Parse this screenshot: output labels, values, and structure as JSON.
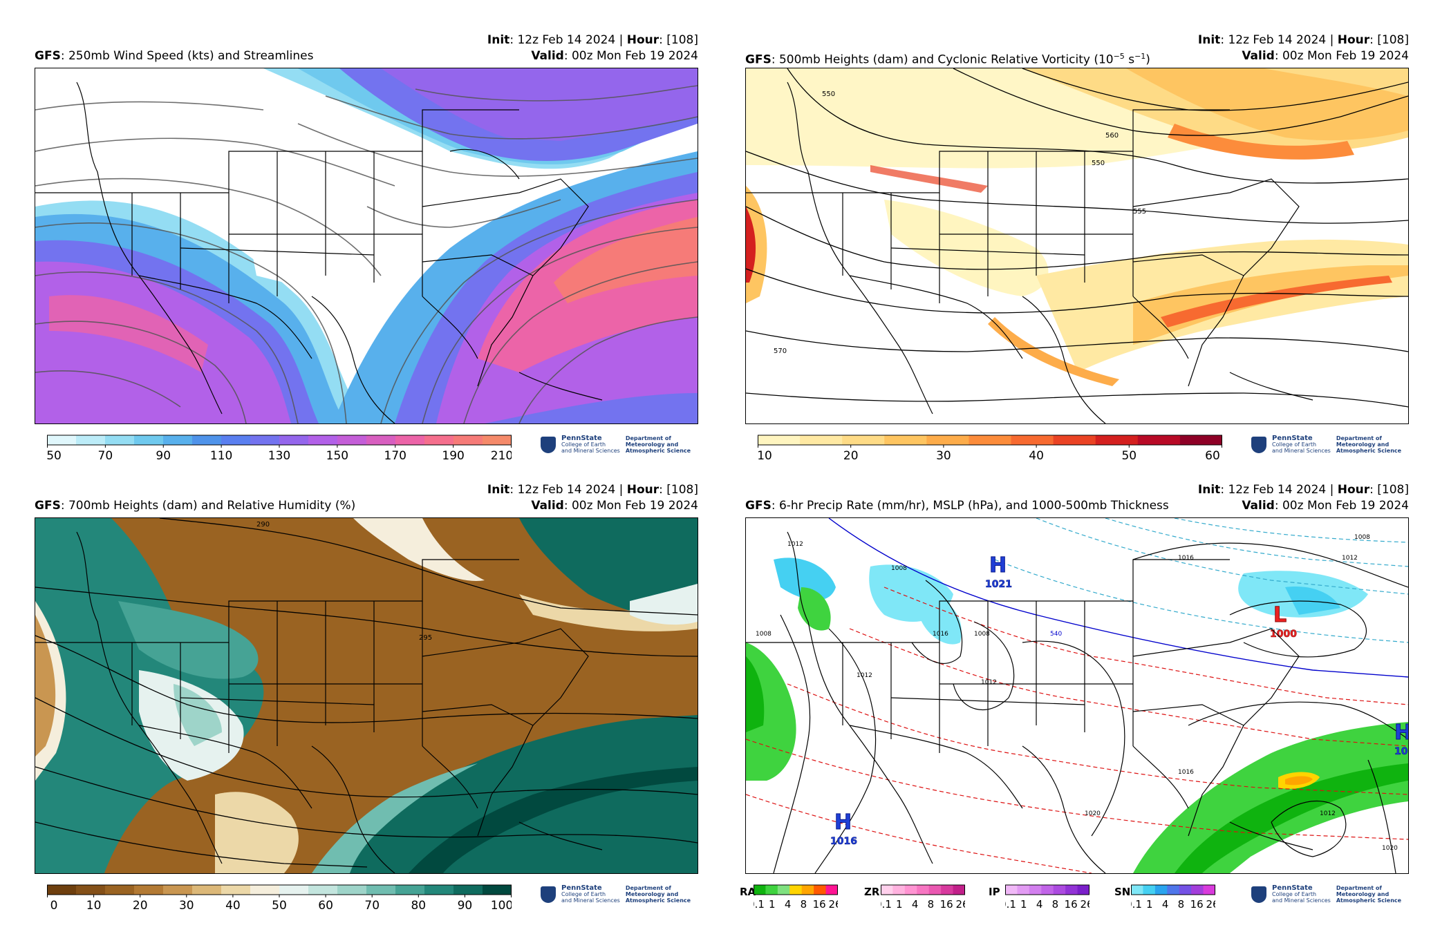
{
  "common": {
    "init_label": "Init",
    "init_value": ": 12z Feb 14 2024 | ",
    "hour_label": "Hour",
    "hour_value": ": [108]",
    "valid_label": "Valid",
    "valid_value": ": 00z Mon Feb 19 2024",
    "model": "GFS",
    "logo_name": "PennState",
    "logo_sub1": "College of Earth",
    "logo_sub2": "and Mineral Sciences",
    "dept1": "Department of",
    "dept2": "Meteorology and",
    "dept3": "Atmospheric Science"
  },
  "panels": [
    {
      "title": ": 250mb Wind Speed (kts) and Streamlines",
      "colorbar": {
        "ticks": [
          "50",
          "70",
          "90",
          "110",
          "130",
          "150",
          "170",
          "190",
          "210"
        ],
        "colors": [
          "#e0f7fc",
          "#bcecf8",
          "#94ddf3",
          "#6fc9ee",
          "#58b0ec",
          "#4f93ea",
          "#5a7ff0",
          "#7373ef",
          "#9466ec",
          "#b261e8",
          "#c45ed8",
          "#d85fc0",
          "#ec64a8",
          "#f56f8d",
          "#f67b78",
          "#f58a6a"
        ]
      }
    },
    {
      "title": ": 500mb Heights (dam) and Cyclonic Relative Vorticity (10",
      "title_sup1": "−5",
      "title_mid": " s",
      "title_sup2": "−1",
      "title_end": ")",
      "colorbar": {
        "ticks": [
          "10",
          "20",
          "30",
          "40",
          "50",
          "60"
        ],
        "colors": [
          "#fff5c0",
          "#ffe9a3",
          "#fedb86",
          "#fec561",
          "#fdac4a",
          "#fc8c3b",
          "#f76a30",
          "#ea4324",
          "#d4201f",
          "#b80a26",
          "#8e0026"
        ]
      },
      "contour_labels": [
        "550",
        "550",
        "555",
        "570",
        "560"
      ]
    },
    {
      "title": ": 700mb Heights (dam) and Relative Humidity (%)",
      "colorbar": {
        "ticks": [
          "0",
          "10",
          "20",
          "30",
          "40",
          "50",
          "60",
          "70",
          "80",
          "90",
          "100"
        ],
        "colors": [
          "#6e3f0e",
          "#845018",
          "#9a6322",
          "#b37a34",
          "#c99651",
          "#dcb878",
          "#ecd8a8",
          "#f5eedc",
          "#e6f2ef",
          "#c3e5de",
          "#9ed4c9",
          "#70bdb0",
          "#46a395",
          "#23877a",
          "#0f6b5e",
          "#01493f"
        ]
      },
      "contour_labels": [
        "290",
        "295"
      ]
    },
    {
      "title": ": 6-hr Precip Rate (mm/hr), MSLP (hPa), and 1000-500mb Thickness",
      "pressure_centers": [
        {
          "letter": "H",
          "value": "1021"
        },
        {
          "letter": "L",
          "value": "1000"
        },
        {
          "letter": "H",
          "value": "1016"
        },
        {
          "letter": "H",
          "value": "10"
        }
      ],
      "contour_labels": [
        "1012",
        "1008",
        "1008",
        "1016",
        "1012",
        "1012",
        "1008",
        "1016",
        "1020",
        "1012",
        "1020",
        "1016",
        "1012",
        "1008",
        "540"
      ],
      "precip_types": [
        {
          "label": "RA",
          "colors": [
            "#0fb30f",
            "#3fd33f",
            "#7fe17f",
            "#ffd400",
            "#ffa500",
            "#ff5a00",
            "#ff1493"
          ]
        },
        {
          "label": "ZR",
          "colors": [
            "#ffd0ec",
            "#ffb2df",
            "#ff94d2",
            "#f776c2",
            "#ea58b1",
            "#d83a9e",
            "#c2208a"
          ]
        },
        {
          "label": "IP",
          "colors": [
            "#f0b8f7",
            "#e29bf3",
            "#d27fee",
            "#c164e8",
            "#ac4be0",
            "#9233d6",
            "#7a1fc9"
          ]
        },
        {
          "label": "SN",
          "colors": [
            "#7fe7f7",
            "#45d0f2",
            "#2aa4ee",
            "#4f76ea",
            "#7452e5",
            "#a33edb",
            "#d93bdc"
          ]
        }
      ],
      "precip_ticks": [
        "0.1",
        "1",
        "4",
        "8",
        "16",
        "26"
      ]
    }
  ]
}
